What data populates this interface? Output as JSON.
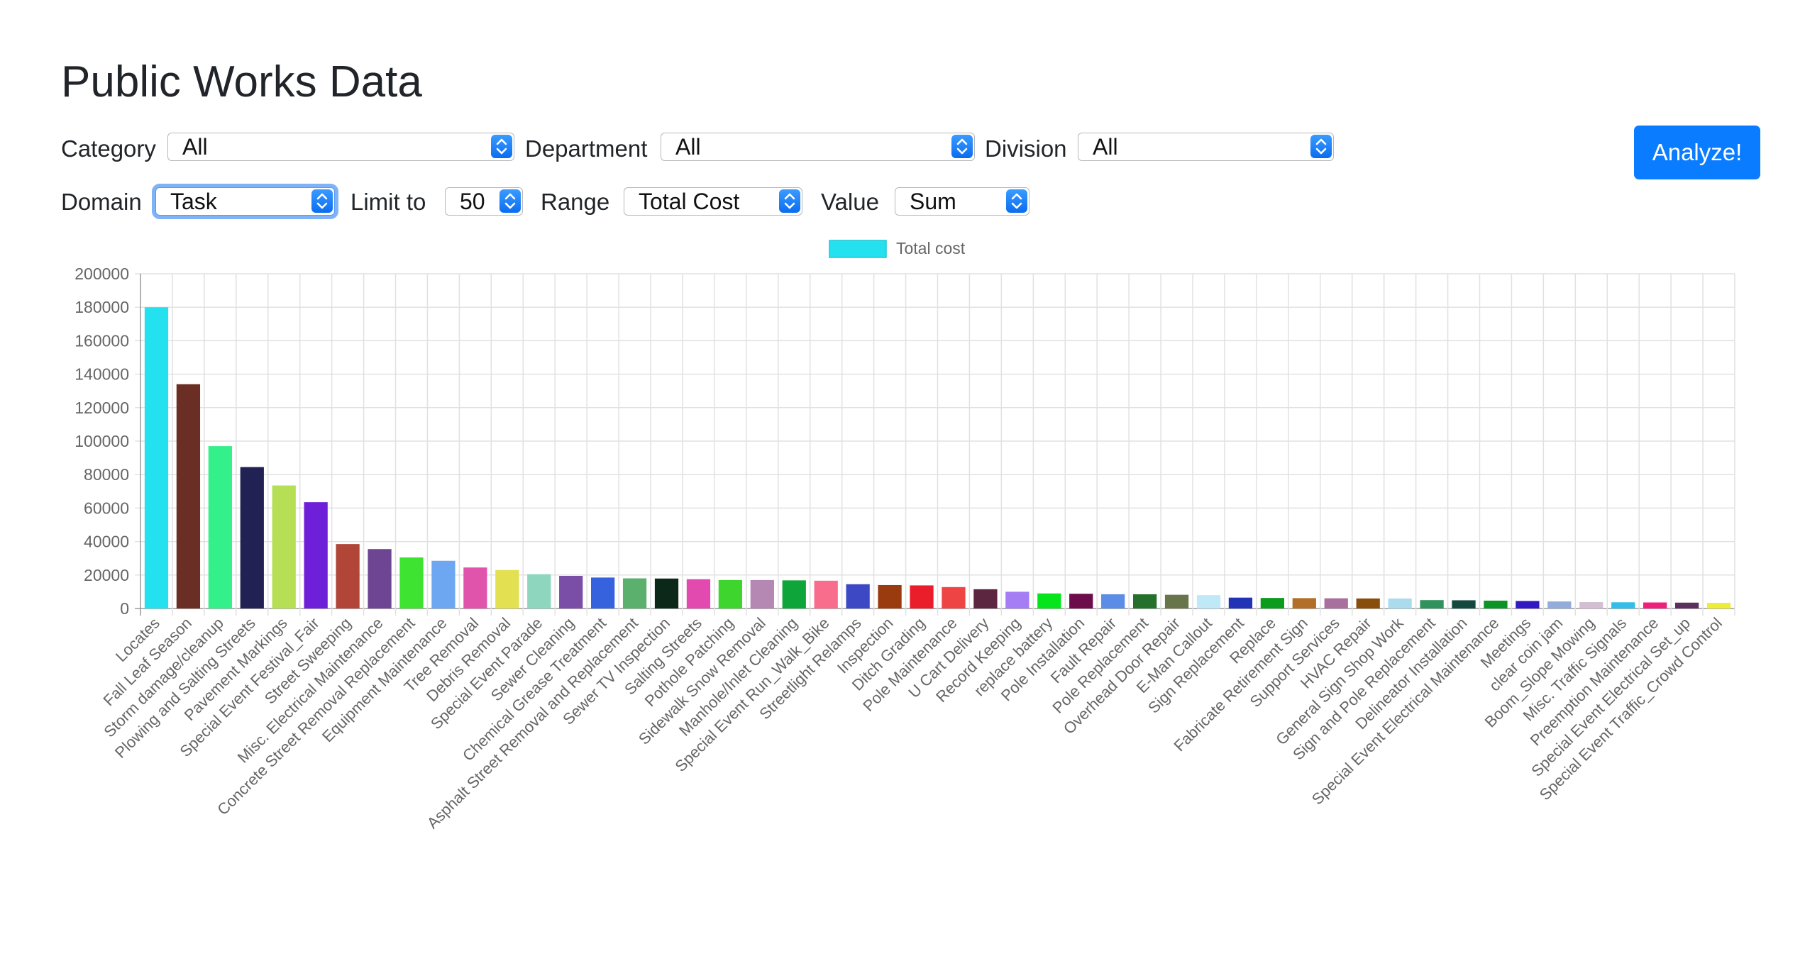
{
  "title": "Public Works Data",
  "filters": {
    "category_label": "Category",
    "category_value": "All",
    "department_label": "Department",
    "department_value": "All",
    "division_label": "Division",
    "division_value": "All",
    "domain_label": "Domain",
    "domain_value": "Task",
    "limit_label": "Limit to",
    "limit_value": "50",
    "range_label": "Range",
    "range_value": "Total Cost",
    "value_label": "Value",
    "value_value": "Sum"
  },
  "analyze_label": "Analyze!",
  "icons": {
    "select_arrow": "up-down-chevron-icon"
  },
  "chart_data": {
    "type": "bar",
    "legend": "Total cost",
    "legend_position": "top-center",
    "grid": true,
    "ylim": [
      0,
      200000
    ],
    "yticks": [
      0,
      20000,
      40000,
      60000,
      80000,
      100000,
      120000,
      140000,
      160000,
      180000,
      200000
    ],
    "categories": [
      "Locates",
      "Fall Leaf Season",
      "Storm damage/cleanup",
      "Plowing and Salting Streets",
      "Pavement Markings",
      "Special Event Festival_Fair",
      "Street Sweeping",
      "Misc. Electrical Maintenance",
      "Concrete Street Removal Replacement",
      "Equipment Maintenance",
      "Tree Removal",
      "Debris Removal",
      "Special Event Parade",
      "Sewer Cleaning",
      "Chemical Grease Treatment",
      "Asphalt Street Removal and Replacement",
      "Sewer TV Inspection",
      "Salting Streets",
      "Pothole Patching",
      "Sidewalk Snow Removal",
      "Manhole/Inlet Cleaning",
      "Special Event Run_Walk_Bike",
      "Streetlight Relamps",
      "Inspection",
      "Ditch Grading",
      "Pole Maintenance",
      "U Cart Delivery",
      "Record Keeping",
      "replace battery",
      "Pole Installation",
      "Fault Repair",
      "Pole Replacement",
      "Overhead Door Repair",
      "E-Man Callout",
      "Sign Replacement",
      "Replace",
      "Fabricate Retirement Sign",
      "Support Services",
      "HVAC Repair",
      "General Sign Shop Work",
      "Sign and Pole Replacement",
      "Delineator Installation",
      "Special Event Electrical Maintenance",
      "Meetings",
      "clear coin jam",
      "Boom_Slope Mowing",
      "Misc. Traffic Signals",
      "Preemption Maintenance",
      "Special Event Electrical Set_up",
      "Special Event Traffic_Crowd Control"
    ],
    "values": [
      180000,
      134000,
      97000,
      84500,
      73500,
      63500,
      38500,
      35500,
      30500,
      28500,
      24500,
      23000,
      20500,
      19500,
      18500,
      18000,
      17900,
      17500,
      17000,
      17000,
      16800,
      16600,
      14500,
      14000,
      13800,
      12800,
      11500,
      10000,
      9000,
      8800,
      8500,
      8500,
      8200,
      8000,
      6500,
      6300,
      6200,
      6100,
      6000,
      6000,
      5000,
      4900,
      4700,
      4500,
      4200,
      3800,
      3700,
      3600,
      3500,
      3400
    ],
    "colors": [
      "#23e1ee",
      "#6b2e24",
      "#34f08a",
      "#212253",
      "#b6df55",
      "#6e20d8",
      "#b04538",
      "#6e4592",
      "#3ee231",
      "#6da7f2",
      "#e154ab",
      "#e3e052",
      "#8ed6bd",
      "#7a4ea6",
      "#3762de",
      "#5ab06c",
      "#0b2819",
      "#e24ab0",
      "#3ed62e",
      "#b587b3",
      "#0ea63b",
      "#f86d8c",
      "#3d48c5",
      "#9a3a0f",
      "#ea1e2b",
      "#ee4544",
      "#5c2540",
      "#a57df4",
      "#06e51b",
      "#6d0c4a",
      "#5c8de6",
      "#25702c",
      "#687449",
      "#bfe9f6",
      "#2333b6",
      "#0b9c1d",
      "#b36e28",
      "#a9709e",
      "#8a4e0c",
      "#abdbec",
      "#32925d",
      "#13493f",
      "#0d9426",
      "#3319c4",
      "#93acd9",
      "#d2bfd1",
      "#33bee9",
      "#ef207b",
      "#5b305e",
      "#eded35"
    ]
  }
}
